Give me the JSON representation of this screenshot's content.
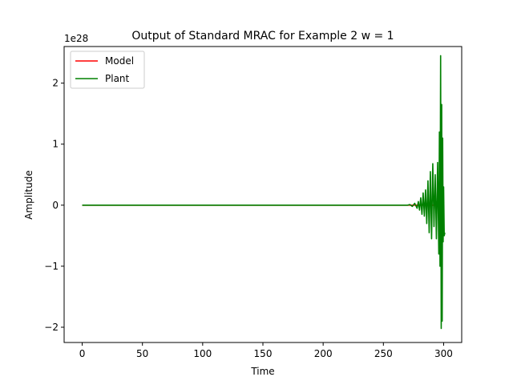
{
  "chart_data": {
    "type": "line",
    "title": "Output of Standard MRAC for Example 2 w = 1",
    "xlabel": "Time",
    "ylabel": "Amplitude",
    "y_offset_label": "1e28",
    "xlim": [
      -15,
      315
    ],
    "ylim": [
      -2.25,
      2.6
    ],
    "xticks": [
      0,
      50,
      100,
      150,
      200,
      250,
      300
    ],
    "xtick_labels": [
      "0",
      "50",
      "100",
      "150",
      "200",
      "250",
      "300"
    ],
    "yticks": [
      -2,
      -1,
      0,
      1,
      2
    ],
    "ytick_labels": [
      "−2",
      "−1",
      "0",
      "1",
      "2"
    ],
    "grid": false,
    "legend": "upper left",
    "series": [
      {
        "name": "Model",
        "color": "#ff0000",
        "x": [
          0,
          300
        ],
        "y": [
          0,
          0
        ]
      },
      {
        "name": "Plant",
        "color": "#008000",
        "x": [
          0,
          270,
          272,
          274,
          276,
          278,
          279,
          280,
          281,
          282,
          283,
          284,
          285,
          286,
          287,
          288,
          289,
          290,
          291,
          292,
          293,
          294,
          295,
          296,
          296.5,
          297,
          297.5,
          298,
          298.4,
          298.8,
          299.2,
          299.6,
          300,
          300.5,
          301
        ],
        "y": [
          0,
          0,
          0.01,
          -0.02,
          0.03,
          -0.05,
          0.06,
          -0.08,
          0.12,
          -0.15,
          0.2,
          -0.18,
          0.25,
          -0.3,
          0.4,
          -0.45,
          0.55,
          -0.55,
          0.68,
          -0.35,
          0.5,
          -0.55,
          0.7,
          -0.8,
          1.2,
          -1.0,
          2.45,
          -2.02,
          1.65,
          -1.9,
          1.1,
          -0.6,
          0.3,
          -0.5,
          -0.45
        ]
      }
    ]
  }
}
